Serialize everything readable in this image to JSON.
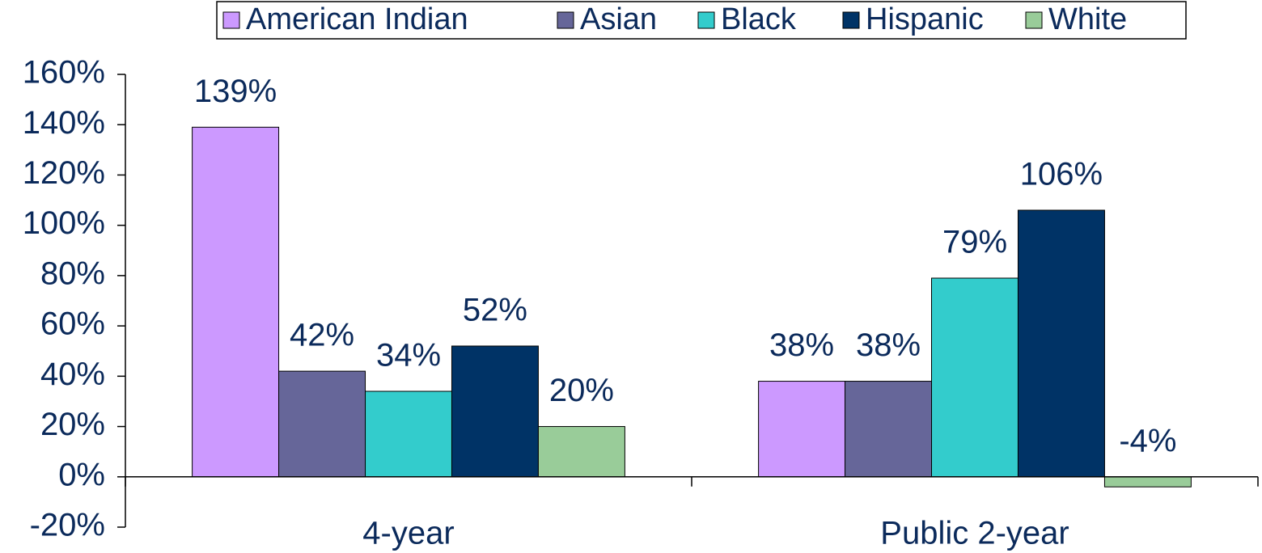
{
  "chart_data": {
    "type": "bar",
    "categories": [
      "4-year",
      "Public 2-year"
    ],
    "series": [
      {
        "name": "American Indian",
        "color": "#cc99ff",
        "values": [
          139,
          38
        ],
        "value_labels": [
          "139%",
          "38%"
        ]
      },
      {
        "name": "Asian",
        "color": "#666699",
        "values": [
          42,
          38
        ],
        "value_labels": [
          "42%",
          "38%"
        ]
      },
      {
        "name": "Black",
        "color": "#33cccc",
        "values": [
          34,
          79
        ],
        "value_labels": [
          "34%",
          "79%"
        ]
      },
      {
        "name": "Hispanic",
        "color": "#003366",
        "values": [
          52,
          106
        ],
        "value_labels": [
          "52%",
          "106%"
        ]
      },
      {
        "name": "White",
        "color": "#99cc99",
        "values": [
          20,
          -4
        ],
        "value_labels": [
          "20%",
          "-4%"
        ]
      }
    ],
    "ylim": [
      -20,
      160
    ],
    "yticks": [
      {
        "value": -20,
        "label": "-20%"
      },
      {
        "value": 0,
        "label": "0%"
      },
      {
        "value": 20,
        "label": "20%"
      },
      {
        "value": 40,
        "label": "40%"
      },
      {
        "value": 60,
        "label": "60%"
      },
      {
        "value": 80,
        "label": "80%"
      },
      {
        "value": 100,
        "label": "100%"
      },
      {
        "value": 120,
        "label": "120%"
      },
      {
        "value": 140,
        "label": "140%"
      },
      {
        "value": 160,
        "label": "160%"
      }
    ],
    "legend": "top"
  }
}
